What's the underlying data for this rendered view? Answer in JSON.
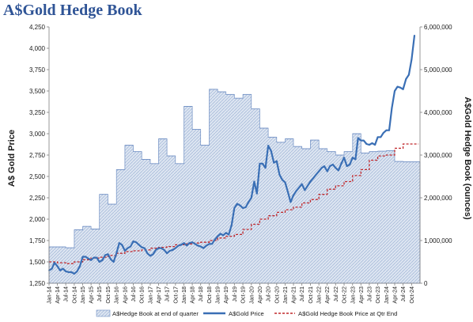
{
  "title": "A$Gold Hedge Book",
  "chart_data": {
    "type": "line",
    "title": "A$Gold Hedge Book",
    "ylabel_left": "A$ Gold Price",
    "ylabel_right": "A$Gold Hedge Book (ounces)",
    "ylim_left": [
      1250,
      4250
    ],
    "yticks_left": [
      1250,
      1500,
      1750,
      2000,
      2250,
      2500,
      2750,
      3000,
      3250,
      3500,
      3750,
      4000,
      4250
    ],
    "ytick_labels_left": [
      "1,250",
      "1,500",
      "1,750",
      "2,000",
      "2,250",
      "2,500",
      "2,750",
      "3,000",
      "3,250",
      "3,500",
      "3,750",
      "4,000",
      "4,250"
    ],
    "ylim_right": [
      0,
      6000000
    ],
    "yticks_right": [
      0,
      1000000,
      2000000,
      3000000,
      4000000,
      5000000,
      6000000
    ],
    "ytick_labels_right": [
      "0",
      "1,000,000",
      "2,000,000",
      "3,000,000",
      "4,000,000",
      "5,000,000",
      "6,000,000"
    ],
    "x_start": "2014-01-01",
    "x_end": "2024-12-31",
    "x_ticks": [
      {
        "date": "2014-01-01",
        "label": "Jan-14"
      },
      {
        "date": "2014-04-01",
        "label": "Apr-14"
      },
      {
        "date": "2014-07-01",
        "label": "Jul-14"
      },
      {
        "date": "2014-10-01",
        "label": "Oct-14"
      },
      {
        "date": "2015-01-01",
        "label": "Jan-15"
      },
      {
        "date": "2015-04-01",
        "label": "Apr-15"
      },
      {
        "date": "2015-07-01",
        "label": "Jul-15"
      },
      {
        "date": "2015-10-01",
        "label": "Oct-15"
      },
      {
        "date": "2016-01-01",
        "label": "Jan-16"
      },
      {
        "date": "2016-04-01",
        "label": "Apr-16"
      },
      {
        "date": "2016-07-01",
        "label": "Jul-16"
      },
      {
        "date": "2016-10-01",
        "label": "Oct-16"
      },
      {
        "date": "2017-01-01",
        "label": "Jan-17"
      },
      {
        "date": "2017-04-01",
        "label": "Apr-17"
      },
      {
        "date": "2017-07-01",
        "label": "Jul-17"
      },
      {
        "date": "2017-10-01",
        "label": "Oct-17"
      },
      {
        "date": "2018-01-01",
        "label": "Jan-18"
      },
      {
        "date": "2018-04-01",
        "label": "Apr-18"
      },
      {
        "date": "2018-07-01",
        "label": "Jul-18"
      },
      {
        "date": "2018-10-01",
        "label": "Oct-18"
      },
      {
        "date": "2019-01-01",
        "label": "Jan-19"
      },
      {
        "date": "2019-04-01",
        "label": "Apr-19"
      },
      {
        "date": "2019-07-01",
        "label": "Jul-19"
      },
      {
        "date": "2019-10-01",
        "label": "Oct-19"
      },
      {
        "date": "2020-01-01",
        "label": "Jan-20"
      },
      {
        "date": "2020-04-01",
        "label": "Apr-20"
      },
      {
        "date": "2020-07-01",
        "label": "Jul-20"
      },
      {
        "date": "2020-10-01",
        "label": "Oct-20"
      },
      {
        "date": "2021-01-01",
        "label": "Jan-21"
      },
      {
        "date": "2021-04-01",
        "label": "Apr-21"
      },
      {
        "date": "2021-07-01",
        "label": "Jul-21"
      },
      {
        "date": "2021-10-01",
        "label": "Oct-21"
      },
      {
        "date": "2022-01-01",
        "label": "Jan-22"
      },
      {
        "date": "2022-04-01",
        "label": "Apr-22"
      },
      {
        "date": "2022-07-01",
        "label": "Jul-22"
      },
      {
        "date": "2022-10-01",
        "label": "Oct-22"
      },
      {
        "date": "2023-01-01",
        "label": "Jan-23"
      },
      {
        "date": "2023-04-01",
        "label": "Apr-23"
      },
      {
        "date": "2023-07-01",
        "label": "Jul-23"
      },
      {
        "date": "2023-10-01",
        "label": "Oct-23"
      },
      {
        "date": "2024-01-01",
        "label": "Jan-24"
      },
      {
        "date": "2024-04-01",
        "label": "Apr-24"
      },
      {
        "date": "2024-07-01",
        "label": "Jul-24"
      },
      {
        "date": "2024-10-01",
        "label": "Oct-24"
      }
    ],
    "grid": false,
    "legend_position": "bottom",
    "colors": {
      "hedge_area_fill": "#dfe6f1",
      "hedge_area_line": "#6f8fc4",
      "gold_price": "#3a6fb5",
      "hedge_price": "#c0282c"
    },
    "series": [
      {
        "name": "A$Hedge Book at end of quarter",
        "type": "area-step",
        "axis": "right",
        "x": [
          "2014-01-01",
          "2014-04-01",
          "2014-07-01",
          "2014-10-01",
          "2015-01-01",
          "2015-04-01",
          "2015-07-01",
          "2015-10-01",
          "2016-01-01",
          "2016-04-01",
          "2016-07-01",
          "2016-10-01",
          "2017-01-01",
          "2017-04-01",
          "2017-07-01",
          "2017-10-01",
          "2018-01-01",
          "2018-04-01",
          "2018-07-01",
          "2018-10-01",
          "2019-01-01",
          "2019-04-01",
          "2019-07-01",
          "2019-10-01",
          "2020-01-01",
          "2020-04-01",
          "2020-07-01",
          "2020-10-01",
          "2021-01-01",
          "2021-04-01",
          "2021-07-01",
          "2021-10-01",
          "2022-01-01",
          "2022-04-01",
          "2022-07-01",
          "2022-10-01",
          "2023-01-01",
          "2023-04-01",
          "2023-07-01",
          "2023-10-01",
          "2024-01-01",
          "2024-04-01",
          "2024-07-01",
          "2024-10-01"
        ],
        "values": [
          850000,
          850000,
          830000,
          1250000,
          1330000,
          1270000,
          2080000,
          1850000,
          2660000,
          3230000,
          3080000,
          2900000,
          2800000,
          3380000,
          2980000,
          2800000,
          4140000,
          3600000,
          3230000,
          4540000,
          4480000,
          4420000,
          4330000,
          4420000,
          4080000,
          3630000,
          3420000,
          3300000,
          3380000,
          3200000,
          3150000,
          3350000,
          3150000,
          3080000,
          3000000,
          3080000,
          3500000,
          3050000,
          3080000,
          3090000,
          3100000,
          2850000,
          2840000,
          2840000
        ]
      },
      {
        "name": "A$Gold Price",
        "type": "line",
        "axis": "left",
        "x": [
          "2014-01-01",
          "2014-02-01",
          "2014-03-01",
          "2014-04-01",
          "2014-05-01",
          "2014-06-01",
          "2014-07-01",
          "2014-08-01",
          "2014-09-01",
          "2014-10-01",
          "2014-11-01",
          "2014-12-01",
          "2015-01-01",
          "2015-02-01",
          "2015-03-01",
          "2015-04-01",
          "2015-05-01",
          "2015-06-01",
          "2015-07-01",
          "2015-08-01",
          "2015-09-01",
          "2015-10-01",
          "2015-11-01",
          "2015-12-01",
          "2016-01-01",
          "2016-02-01",
          "2016-03-01",
          "2016-04-01",
          "2016-05-01",
          "2016-06-01",
          "2016-07-01",
          "2016-08-01",
          "2016-09-01",
          "2016-10-01",
          "2016-11-01",
          "2016-12-01",
          "2017-01-01",
          "2017-02-01",
          "2017-03-01",
          "2017-04-01",
          "2017-05-01",
          "2017-06-01",
          "2017-07-01",
          "2017-08-01",
          "2017-09-01",
          "2017-10-01",
          "2017-11-01",
          "2017-12-01",
          "2018-01-01",
          "2018-02-01",
          "2018-03-01",
          "2018-04-01",
          "2018-05-01",
          "2018-06-01",
          "2018-07-01",
          "2018-08-01",
          "2018-09-01",
          "2018-10-01",
          "2018-11-01",
          "2018-12-01",
          "2019-01-01",
          "2019-02-01",
          "2019-03-01",
          "2019-04-01",
          "2019-05-01",
          "2019-06-01",
          "2019-07-01",
          "2019-08-01",
          "2019-09-01",
          "2019-10-01",
          "2019-11-01",
          "2019-12-01",
          "2020-01-01",
          "2020-02-01",
          "2020-03-01",
          "2020-04-01",
          "2020-05-01",
          "2020-06-01",
          "2020-07-01",
          "2020-08-01",
          "2020-09-01",
          "2020-10-01",
          "2020-11-01",
          "2020-12-01",
          "2021-01-01",
          "2021-02-01",
          "2021-03-01",
          "2021-04-01",
          "2021-05-01",
          "2021-06-01",
          "2021-07-01",
          "2021-08-01",
          "2021-09-01",
          "2021-10-01",
          "2021-11-01",
          "2021-12-01",
          "2022-01-01",
          "2022-02-01",
          "2022-03-01",
          "2022-04-01",
          "2022-05-01",
          "2022-06-01",
          "2022-07-01",
          "2022-08-01",
          "2022-09-01",
          "2022-10-01",
          "2022-11-01",
          "2022-12-01",
          "2023-01-01",
          "2023-02-01",
          "2023-03-01",
          "2023-04-01",
          "2023-05-01",
          "2023-06-01",
          "2023-07-01",
          "2023-08-01",
          "2023-09-01",
          "2023-10-01",
          "2023-11-01",
          "2023-12-01",
          "2024-01-01",
          "2024-02-01",
          "2024-03-01",
          "2024-04-01",
          "2024-05-01",
          "2024-06-01",
          "2024-07-01",
          "2024-08-01",
          "2024-09-01",
          "2024-10-01",
          "2024-11-01"
        ],
        "values": [
          1400,
          1420,
          1490,
          1450,
          1400,
          1420,
          1390,
          1380,
          1380,
          1360,
          1390,
          1450,
          1560,
          1560,
          1540,
          1520,
          1550,
          1550,
          1500,
          1520,
          1580,
          1590,
          1530,
          1500,
          1600,
          1720,
          1700,
          1630,
          1660,
          1680,
          1740,
          1730,
          1700,
          1670,
          1660,
          1600,
          1570,
          1590,
          1640,
          1660,
          1660,
          1640,
          1600,
          1630,
          1640,
          1660,
          1690,
          1700,
          1720,
          1690,
          1720,
          1730,
          1710,
          1690,
          1680,
          1660,
          1690,
          1710,
          1710,
          1760,
          1800,
          1830,
          1810,
          1840,
          1820,
          1930,
          2130,
          2180,
          2160,
          2130,
          2140,
          2200,
          2250,
          2440,
          2300,
          2650,
          2650,
          2600,
          2860,
          2800,
          2660,
          2680,
          2520,
          2460,
          2430,
          2310,
          2200,
          2280,
          2330,
          2370,
          2410,
          2340,
          2390,
          2440,
          2480,
          2520,
          2560,
          2600,
          2620,
          2560,
          2620,
          2640,
          2600,
          2570,
          2650,
          2720,
          2620,
          2640,
          2720,
          2700,
          2950,
          2920,
          2920,
          2880,
          2870,
          2890,
          2870,
          2960,
          2960,
          3010,
          3040,
          3040,
          3300,
          3500,
          3550,
          3540,
          3520,
          3640,
          3690,
          3870,
          4150
        ]
      },
      {
        "name": "A$Gold Hedge Book Price at Qtr End",
        "type": "step-line",
        "axis": "left",
        "x": [
          "2014-01-01",
          "2014-04-01",
          "2014-07-01",
          "2014-10-01",
          "2015-01-01",
          "2015-04-01",
          "2015-07-01",
          "2015-10-01",
          "2016-01-01",
          "2016-04-01",
          "2016-07-01",
          "2016-10-01",
          "2017-01-01",
          "2017-04-01",
          "2017-07-01",
          "2017-10-01",
          "2018-01-01",
          "2018-04-01",
          "2018-07-01",
          "2018-10-01",
          "2019-01-01",
          "2019-04-01",
          "2019-07-01",
          "2019-10-01",
          "2020-01-01",
          "2020-04-01",
          "2020-07-01",
          "2020-10-01",
          "2021-01-01",
          "2021-04-01",
          "2021-07-01",
          "2021-10-01",
          "2022-01-01",
          "2022-04-01",
          "2022-07-01",
          "2022-10-01",
          "2023-01-01",
          "2023-04-01",
          "2023-07-01",
          "2023-10-01",
          "2024-01-01",
          "2024-04-01",
          "2024-07-01",
          "2024-10-01"
        ],
        "values": [
          1500,
          1490,
          1480,
          1500,
          1525,
          1545,
          1555,
          1575,
          1600,
          1620,
          1630,
          1640,
          1660,
          1670,
          1680,
          1700,
          1710,
          1720,
          1730,
          1750,
          1780,
          1800,
          1820,
          1880,
          1940,
          2000,
          2040,
          2080,
          2110,
          2140,
          2190,
          2230,
          2290,
          2350,
          2390,
          2440,
          2510,
          2580,
          2690,
          2740,
          2750,
          2830,
          2880,
          2880
        ]
      }
    ]
  }
}
